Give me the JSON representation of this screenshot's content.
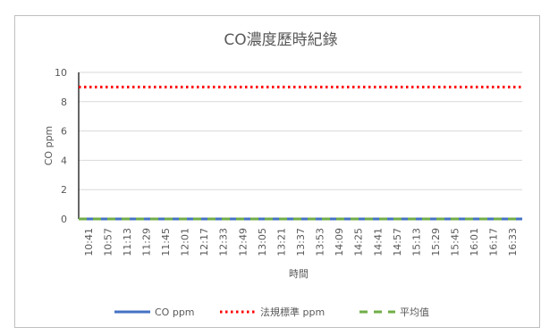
{
  "chart_data": {
    "type": "line",
    "title": "CO濃度歷時紀錄",
    "xlabel": "時間",
    "ylabel": "CO ppm",
    "ylim": [
      0,
      10
    ],
    "yticks": [
      0,
      2,
      4,
      6,
      8,
      10
    ],
    "grid": true,
    "legend": "bottom",
    "categories": [
      "10:41",
      "10:57",
      "11:13",
      "11:29",
      "11:45",
      "12:01",
      "12:17",
      "12:33",
      "12:49",
      "13:05",
      "13:21",
      "13:37",
      "13:53",
      "14:09",
      "14:25",
      "14:41",
      "14:57",
      "15:13",
      "15:29",
      "15:45",
      "16:01",
      "16:17",
      "16:33"
    ],
    "series": [
      {
        "name": "CO ppm",
        "style": "solid",
        "color": "#4472c4",
        "values": [
          0,
          0,
          0,
          0,
          0,
          0,
          0,
          0,
          0,
          0,
          0,
          0,
          0,
          0,
          0,
          0,
          0,
          0,
          0,
          0,
          0,
          0,
          0
        ]
      },
      {
        "name": "法規標準 ppm",
        "style": "dotted",
        "color": "#ff0000",
        "values": [
          9,
          9,
          9,
          9,
          9,
          9,
          9,
          9,
          9,
          9,
          9,
          9,
          9,
          9,
          9,
          9,
          9,
          9,
          9,
          9,
          9,
          9,
          9
        ]
      },
      {
        "name": "平均值",
        "style": "dashed",
        "color": "#70ad47",
        "values": [
          0,
          0,
          0,
          0,
          0,
          0,
          0,
          0,
          0,
          0,
          0,
          0,
          0,
          0,
          0,
          0,
          0,
          0,
          0,
          0,
          0,
          0,
          0
        ]
      }
    ]
  }
}
